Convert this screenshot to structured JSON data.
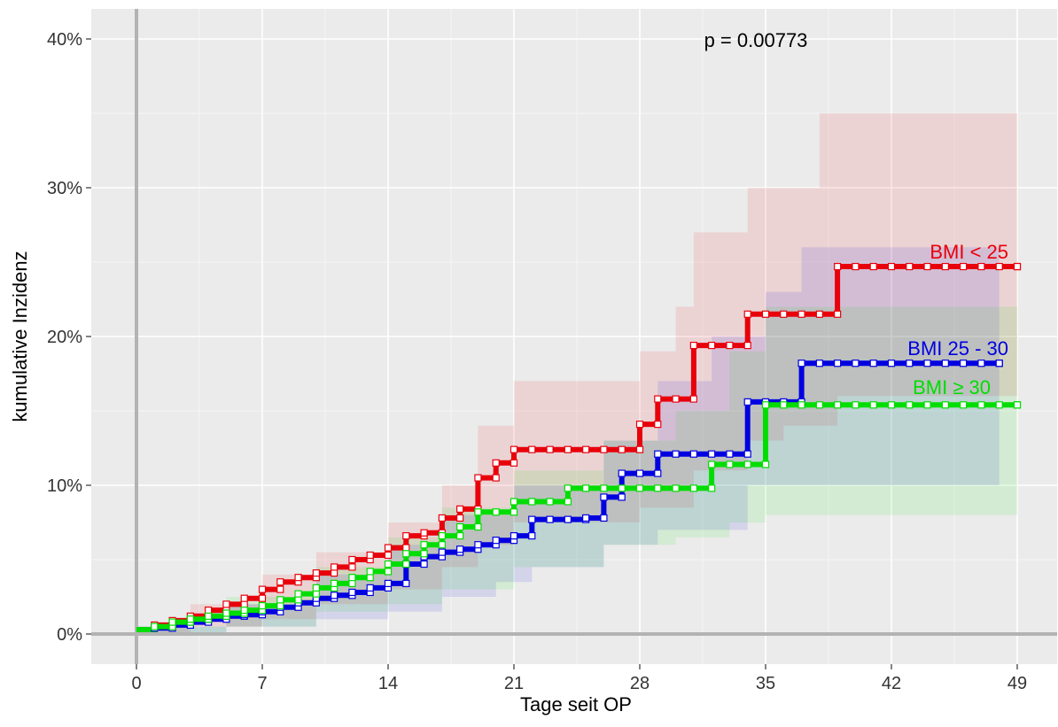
{
  "chart_data": {
    "type": "line",
    "subtype": "step",
    "xlabel": "Tage seit OP",
    "ylabel": "kumulative Inzidenz",
    "xlim": [
      0,
      49
    ],
    "ylim": [
      0,
      0.4
    ],
    "x_ticks": [
      0,
      7,
      14,
      21,
      28,
      35,
      42,
      49
    ],
    "x_tick_labels": [
      "0",
      "7",
      "14",
      "21",
      "28",
      "35",
      "42",
      "49"
    ],
    "y_ticks": [
      0,
      0.1,
      0.2,
      0.3,
      0.4
    ],
    "y_tick_labels": [
      "0%",
      "10%",
      "20%",
      "30%",
      "40%"
    ],
    "grid": true,
    "annotation": "p = 0.00773",
    "series": [
      {
        "name": "BMI < 25",
        "color": "#e8000b",
        "steps": [
          [
            0,
            0.003
          ],
          [
            1,
            0.006
          ],
          [
            2,
            0.009
          ],
          [
            3,
            0.012
          ],
          [
            4,
            0.016
          ],
          [
            5,
            0.02
          ],
          [
            6,
            0.024
          ],
          [
            7,
            0.03
          ],
          [
            8,
            0.035
          ],
          [
            9,
            0.038
          ],
          [
            10,
            0.041
          ],
          [
            11,
            0.045
          ],
          [
            12,
            0.05
          ],
          [
            13,
            0.053
          ],
          [
            14,
            0.058
          ],
          [
            15,
            0.066
          ],
          [
            16,
            0.068
          ],
          [
            17,
            0.078
          ],
          [
            18,
            0.084
          ],
          [
            19,
            0.105
          ],
          [
            20,
            0.115
          ],
          [
            21,
            0.124
          ],
          [
            28,
            0.141
          ],
          [
            29,
            0.158
          ],
          [
            31,
            0.194
          ],
          [
            34,
            0.215
          ],
          [
            39,
            0.247
          ],
          [
            49,
            0.247
          ]
        ],
        "ci_lower": [
          [
            0,
            0
          ],
          [
            3,
            0.005
          ],
          [
            7,
            0.01
          ],
          [
            10,
            0.02
          ],
          [
            14,
            0.03
          ],
          [
            17,
            0.045
          ],
          [
            19,
            0.06
          ],
          [
            21,
            0.075
          ],
          [
            28,
            0.085
          ],
          [
            31,
            0.11
          ],
          [
            34,
            0.13
          ],
          [
            36,
            0.14
          ],
          [
            39,
            0.16
          ],
          [
            49,
            0.16
          ]
        ],
        "ci_upper": [
          [
            0,
            0.005
          ],
          [
            3,
            0.02
          ],
          [
            7,
            0.04
          ],
          [
            10,
            0.055
          ],
          [
            14,
            0.075
          ],
          [
            17,
            0.1
          ],
          [
            19,
            0.14
          ],
          [
            21,
            0.17
          ],
          [
            27,
            0.17
          ],
          [
            28,
            0.19
          ],
          [
            30,
            0.22
          ],
          [
            31,
            0.27
          ],
          [
            33,
            0.27
          ],
          [
            34,
            0.3
          ],
          [
            37,
            0.3
          ],
          [
            38,
            0.35
          ],
          [
            49,
            0.35
          ]
        ]
      },
      {
        "name": "BMI 25 - 30",
        "color": "#0000e0",
        "steps": [
          [
            0,
            0.003
          ],
          [
            1,
            0.004
          ],
          [
            2,
            0.006
          ],
          [
            3,
            0.008
          ],
          [
            4,
            0.01
          ],
          [
            5,
            0.012
          ],
          [
            6,
            0.013
          ],
          [
            7,
            0.015
          ],
          [
            8,
            0.018
          ],
          [
            9,
            0.021
          ],
          [
            10,
            0.024
          ],
          [
            11,
            0.026
          ],
          [
            12,
            0.028
          ],
          [
            13,
            0.031
          ],
          [
            14,
            0.034
          ],
          [
            15,
            0.047
          ],
          [
            16,
            0.052
          ],
          [
            17,
            0.055
          ],
          [
            18,
            0.057
          ],
          [
            19,
            0.06
          ],
          [
            20,
            0.063
          ],
          [
            21,
            0.066
          ],
          [
            22,
            0.077
          ],
          [
            25,
            0.078
          ],
          [
            26,
            0.092
          ],
          [
            27,
            0.108
          ],
          [
            29,
            0.121
          ],
          [
            34,
            0.156
          ],
          [
            37,
            0.182
          ],
          [
            48,
            0.182
          ]
        ],
        "ci_lower": [
          [
            0,
            0
          ],
          [
            5,
            0.005
          ],
          [
            10,
            0.01
          ],
          [
            14,
            0.015
          ],
          [
            17,
            0.025
          ],
          [
            20,
            0.035
          ],
          [
            22,
            0.045
          ],
          [
            26,
            0.06
          ],
          [
            29,
            0.07
          ],
          [
            34,
            0.1
          ],
          [
            48,
            0.1
          ]
        ],
        "ci_upper": [
          [
            0,
            0.005
          ],
          [
            5,
            0.02
          ],
          [
            10,
            0.04
          ],
          [
            14,
            0.06
          ],
          [
            17,
            0.08
          ],
          [
            21,
            0.1
          ],
          [
            26,
            0.13
          ],
          [
            29,
            0.17
          ],
          [
            32,
            0.2
          ],
          [
            35,
            0.23
          ],
          [
            37,
            0.26
          ],
          [
            48,
            0.26
          ]
        ]
      },
      {
        "name": "BMI  ≥ 30",
        "color": "#00dd00",
        "steps": [
          [
            0,
            0.003
          ],
          [
            1,
            0.005
          ],
          [
            2,
            0.008
          ],
          [
            3,
            0.01
          ],
          [
            4,
            0.012
          ],
          [
            5,
            0.014
          ],
          [
            6,
            0.016
          ],
          [
            7,
            0.019
          ],
          [
            8,
            0.023
          ],
          [
            9,
            0.027
          ],
          [
            10,
            0.031
          ],
          [
            11,
            0.034
          ],
          [
            12,
            0.038
          ],
          [
            13,
            0.042
          ],
          [
            14,
            0.047
          ],
          [
            15,
            0.054
          ],
          [
            16,
            0.06
          ],
          [
            17,
            0.066
          ],
          [
            18,
            0.072
          ],
          [
            19,
            0.082
          ],
          [
            21,
            0.089
          ],
          [
            24,
            0.098
          ],
          [
            32,
            0.114
          ],
          [
            35,
            0.154
          ],
          [
            49,
            0.154
          ]
        ],
        "ci_lower": [
          [
            0,
            0
          ],
          [
            5,
            0.005
          ],
          [
            10,
            0.015
          ],
          [
            14,
            0.02
          ],
          [
            17,
            0.03
          ],
          [
            21,
            0.045
          ],
          [
            26,
            0.06
          ],
          [
            30,
            0.065
          ],
          [
            33,
            0.075
          ],
          [
            35,
            0.08
          ],
          [
            49,
            0.08
          ]
        ],
        "ci_upper": [
          [
            0,
            0.005
          ],
          [
            5,
            0.025
          ],
          [
            10,
            0.045
          ],
          [
            14,
            0.065
          ],
          [
            17,
            0.085
          ],
          [
            21,
            0.11
          ],
          [
            26,
            0.13
          ],
          [
            30,
            0.15
          ],
          [
            33,
            0.19
          ],
          [
            35,
            0.22
          ],
          [
            49,
            0.22
          ]
        ]
      }
    ],
    "series_labels": [
      "BMI < 25",
      "BMI 25 - 30",
      "BMI  ≥ 30"
    ]
  }
}
